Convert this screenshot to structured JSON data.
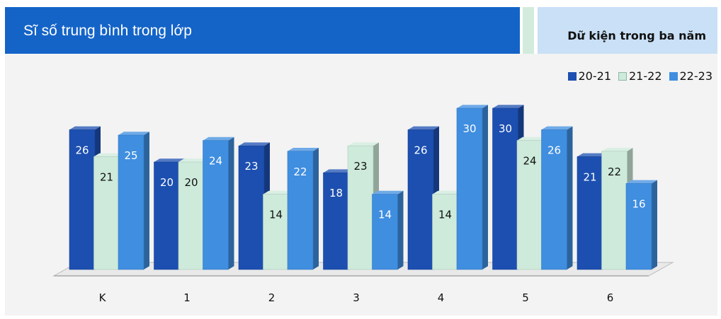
{
  "header": {
    "title": "Sĩ số trung bình trong lớp",
    "right_label": "Dữ kiện trong ba năm"
  },
  "colors": {
    "header_bg": "#1464c8",
    "stripe": "#d2ebdd",
    "right_bg": "#c9e0f6",
    "series": [
      "#1c4fb0",
      "#cdeadb",
      "#3f8ee0"
    ],
    "label_text": [
      "#ffffff",
      "#111111",
      "#ffffff"
    ]
  },
  "chart_data": {
    "type": "bar",
    "categories": [
      "K",
      "1",
      "2",
      "3",
      "4",
      "5",
      "6"
    ],
    "series": [
      {
        "name": "20-21",
        "values": [
          26,
          20,
          23,
          18,
          26,
          30,
          21
        ]
      },
      {
        "name": "21-22",
        "values": [
          21,
          20,
          14,
          23,
          14,
          24,
          22
        ]
      },
      {
        "name": "22-23",
        "values": [
          25,
          24,
          22,
          14,
          30,
          26,
          16
        ]
      }
    ],
    "title": "",
    "xlabel": "",
    "ylabel": "",
    "ylim": [
      0,
      30
    ],
    "grid": false,
    "legend_position": "top-right",
    "data_labels": true,
    "style": "3d-column"
  }
}
